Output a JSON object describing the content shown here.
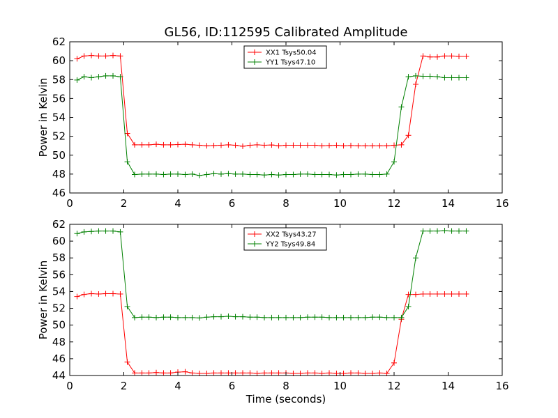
{
  "title": "GL56, ID:112595 Calibrated Amplitude",
  "chart_data": [
    {
      "type": "line",
      "title": "GL56, ID:112595 Calibrated Amplitude",
      "xlabel": "",
      "ylabel": "Power in Kelvin",
      "xlim": [
        0,
        16
      ],
      "ylim": [
        46,
        62
      ],
      "xticks": [
        "0",
        "2",
        "4",
        "6",
        "8",
        "10",
        "12",
        "14",
        "16"
      ],
      "yticks": [
        "46",
        "48",
        "50",
        "52",
        "54",
        "56",
        "58",
        "60",
        "62"
      ],
      "legend_position": "top-center",
      "x": [
        0.27,
        0.53,
        0.8,
        1.07,
        1.33,
        1.6,
        1.87,
        2.13,
        2.4,
        2.67,
        2.93,
        3.2,
        3.47,
        3.73,
        4.0,
        4.27,
        4.53,
        4.8,
        5.07,
        5.33,
        5.6,
        5.87,
        6.13,
        6.4,
        6.67,
        6.93,
        7.2,
        7.47,
        7.73,
        8.0,
        8.27,
        8.53,
        8.8,
        9.07,
        9.33,
        9.6,
        9.87,
        10.13,
        10.4,
        10.67,
        10.93,
        11.2,
        11.47,
        11.73,
        12.0,
        12.27,
        12.53,
        12.8,
        13.07,
        13.33,
        13.6,
        13.87,
        14.13,
        14.4,
        14.67
      ],
      "series": [
        {
          "name": "XX1 Tsys50.04",
          "color": "#ff0000",
          "values": [
            60.2,
            60.5,
            60.55,
            60.5,
            60.5,
            60.55,
            60.5,
            52.3,
            51.1,
            51.1,
            51.1,
            51.15,
            51.1,
            51.1,
            51.12,
            51.15,
            51.1,
            51.05,
            51.0,
            51.02,
            51.05,
            51.1,
            51.05,
            50.95,
            51.05,
            51.1,
            51.05,
            51.08,
            51.0,
            51.05,
            51.05,
            51.05,
            51.05,
            51.05,
            51.0,
            51.02,
            51.05,
            51.0,
            51.02,
            51.0,
            51.0,
            51.0,
            51.0,
            51.0,
            51.05,
            51.1,
            52.1,
            57.5,
            60.5,
            60.4,
            60.4,
            60.5,
            60.5,
            60.45,
            60.45
          ]
        },
        {
          "name": "YY1 Tsys47.10",
          "color": "#008000",
          "values": [
            57.95,
            58.3,
            58.2,
            58.3,
            58.4,
            58.4,
            58.3,
            49.3,
            47.95,
            48.0,
            48.0,
            48.0,
            47.95,
            48.0,
            48.0,
            47.95,
            48.0,
            47.85,
            47.95,
            48.05,
            48.0,
            48.05,
            48.0,
            48.0,
            47.95,
            47.95,
            47.9,
            47.95,
            47.9,
            47.95,
            47.95,
            48.0,
            48.0,
            47.95,
            47.95,
            47.95,
            47.9,
            47.95,
            47.95,
            48.0,
            48.0,
            47.95,
            47.95,
            48.0,
            49.3,
            55.1,
            58.3,
            58.4,
            58.35,
            58.35,
            58.3,
            58.2,
            58.2,
            58.2,
            58.2
          ]
        }
      ]
    },
    {
      "type": "line",
      "title": "",
      "xlabel": "Time (seconds)",
      "ylabel": "Power in Kelvin",
      "xlim": [
        0,
        16
      ],
      "ylim": [
        44,
        62
      ],
      "xticks": [
        "0",
        "2",
        "4",
        "6",
        "8",
        "10",
        "12",
        "14",
        "16"
      ],
      "yticks": [
        "44",
        "46",
        "48",
        "50",
        "52",
        "54",
        "56",
        "58",
        "60",
        "62"
      ],
      "legend_position": "top-center",
      "x": [
        0.27,
        0.53,
        0.8,
        1.07,
        1.33,
        1.6,
        1.87,
        2.13,
        2.4,
        2.67,
        2.93,
        3.2,
        3.47,
        3.73,
        4.0,
        4.27,
        4.53,
        4.8,
        5.07,
        5.33,
        5.6,
        5.87,
        6.13,
        6.4,
        6.67,
        6.93,
        7.2,
        7.47,
        7.73,
        8.0,
        8.27,
        8.53,
        8.8,
        9.07,
        9.33,
        9.6,
        9.87,
        10.13,
        10.4,
        10.67,
        10.93,
        11.2,
        11.47,
        11.73,
        12.0,
        12.27,
        12.53,
        12.8,
        13.07,
        13.33,
        13.6,
        13.87,
        14.13,
        14.4,
        14.67
      ],
      "series": [
        {
          "name": "XX2 Tsys43.27",
          "color": "#ff0000",
          "values": [
            53.4,
            53.65,
            53.75,
            53.7,
            53.75,
            53.75,
            53.7,
            45.6,
            44.3,
            44.3,
            44.3,
            44.35,
            44.3,
            44.3,
            44.4,
            44.45,
            44.3,
            44.25,
            44.25,
            44.3,
            44.3,
            44.3,
            44.3,
            44.3,
            44.3,
            44.25,
            44.3,
            44.3,
            44.3,
            44.3,
            44.25,
            44.25,
            44.3,
            44.3,
            44.25,
            44.3,
            44.25,
            44.25,
            44.3,
            44.3,
            44.25,
            44.25,
            44.3,
            44.25,
            45.5,
            50.7,
            53.65,
            53.65,
            53.7,
            53.7,
            53.7,
            53.7,
            53.7,
            53.7,
            53.7
          ]
        },
        {
          "name": "YY2 Tsys49.84",
          "color": "#008000",
          "values": [
            60.9,
            61.1,
            61.15,
            61.2,
            61.2,
            61.2,
            61.1,
            52.2,
            50.9,
            50.95,
            50.95,
            50.9,
            50.95,
            50.95,
            50.9,
            50.9,
            50.9,
            50.85,
            50.95,
            51.0,
            51.0,
            51.05,
            51.0,
            51.0,
            50.95,
            50.95,
            50.9,
            50.9,
            50.9,
            50.9,
            50.9,
            50.9,
            50.95,
            50.95,
            50.95,
            50.9,
            50.9,
            50.9,
            50.9,
            50.9,
            50.9,
            50.95,
            50.95,
            50.9,
            50.9,
            50.9,
            52.2,
            58.0,
            61.2,
            61.2,
            61.2,
            61.25,
            61.2,
            61.2,
            61.2
          ]
        }
      ]
    }
  ]
}
